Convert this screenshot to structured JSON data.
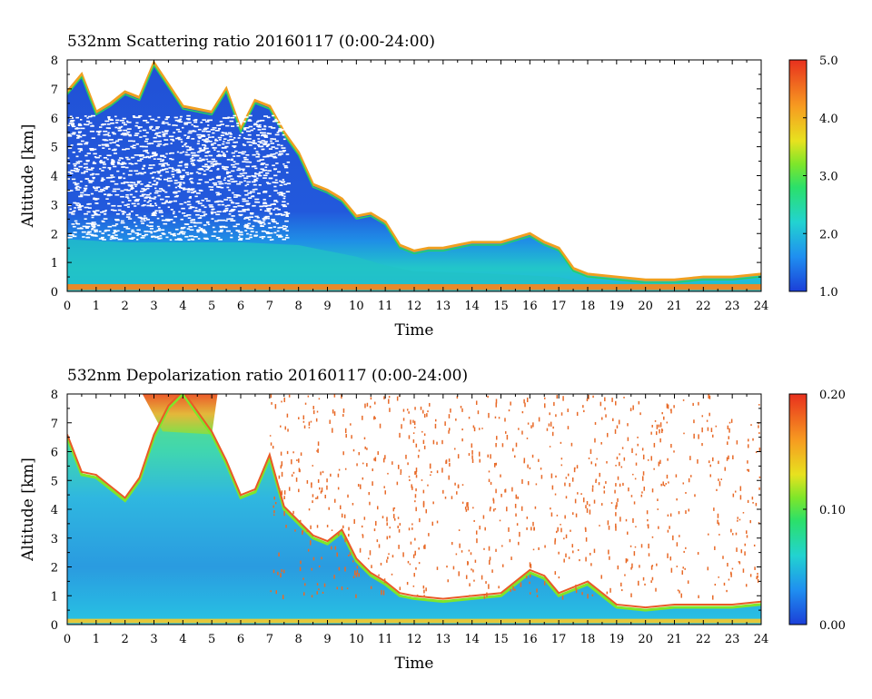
{
  "chart_data": [
    {
      "type": "heatmap",
      "title": "532nm Scattering ratio   20160117 (0:00-24:00)",
      "xlabel": "Time",
      "ylabel": "Altitude [km]",
      "xlim": [
        0,
        24
      ],
      "ylim": [
        0,
        8
      ],
      "x_ticks": [
        "0",
        "1",
        "2",
        "3",
        "4",
        "5",
        "6",
        "7",
        "8",
        "9",
        "10",
        "11",
        "12",
        "13",
        "14",
        "15",
        "16",
        "17",
        "18",
        "19",
        "20",
        "21",
        "22",
        "23",
        "24"
      ],
      "y_ticks": [
        "0",
        "1",
        "2",
        "3",
        "4",
        "5",
        "6",
        "7",
        "8"
      ],
      "colorbar": {
        "range": [
          1.0,
          5.0
        ],
        "ticks": [
          "1.0",
          "2.0",
          "3.0",
          "4.0",
          "5.0"
        ]
      },
      "cloud_top_km": [
        [
          0,
          6.9
        ],
        [
          0.5,
          7.5
        ],
        [
          1,
          6.2
        ],
        [
          1.5,
          6.5
        ],
        [
          2,
          6.9
        ],
        [
          2.5,
          6.7
        ],
        [
          3,
          7.9
        ],
        [
          4,
          6.4
        ],
        [
          5,
          6.2
        ],
        [
          5.5,
          7.0
        ],
        [
          6,
          5.6
        ],
        [
          6.5,
          6.6
        ],
        [
          7,
          6.4
        ],
        [
          7.5,
          5.5
        ],
        [
          8,
          4.8
        ],
        [
          8.5,
          3.7
        ],
        [
          9,
          3.5
        ],
        [
          9.5,
          3.2
        ],
        [
          10,
          2.6
        ],
        [
          10.5,
          2.7
        ],
        [
          11,
          2.4
        ],
        [
          11.5,
          1.6
        ],
        [
          12,
          1.4
        ],
        [
          12.5,
          1.5
        ],
        [
          13,
          1.5
        ],
        [
          14,
          1.7
        ],
        [
          15,
          1.7
        ],
        [
          16,
          2.0
        ],
        [
          16.5,
          1.7
        ],
        [
          17,
          1.5
        ],
        [
          17.5,
          0.8
        ],
        [
          18,
          0.6
        ],
        [
          19,
          0.5
        ],
        [
          20,
          0.4
        ],
        [
          21,
          0.4
        ],
        [
          22,
          0.5
        ],
        [
          23,
          0.5
        ],
        [
          24,
          0.6
        ]
      ],
      "boundary_layer_top_km": [
        [
          0,
          1.8
        ],
        [
          2,
          1.7
        ],
        [
          4,
          1.7
        ],
        [
          6,
          1.7
        ],
        [
          8,
          1.6
        ],
        [
          9,
          1.4
        ],
        [
          10,
          1.2
        ],
        [
          11,
          0.9
        ],
        [
          12,
          0.7
        ],
        [
          15,
          0.6
        ],
        [
          17,
          0.5
        ],
        [
          18,
          0.3
        ],
        [
          24,
          0.3
        ]
      ],
      "units": {
        "x": "hour",
        "y": "km"
      }
    },
    {
      "type": "heatmap",
      "title": "532nm Depolarization ratio   20160117 (0:00-24:00)",
      "xlabel": "Time",
      "ylabel": "Altitude [km]",
      "xlim": [
        0,
        24
      ],
      "ylim": [
        0,
        8
      ],
      "x_ticks": [
        "0",
        "1",
        "2",
        "3",
        "4",
        "5",
        "6",
        "7",
        "8",
        "9",
        "10",
        "11",
        "12",
        "13",
        "14",
        "15",
        "16",
        "17",
        "18",
        "19",
        "20",
        "21",
        "22",
        "23",
        "24"
      ],
      "y_ticks": [
        "0",
        "1",
        "2",
        "3",
        "4",
        "5",
        "6",
        "7",
        "8"
      ],
      "colorbar": {
        "range": [
          0.0,
          0.2
        ],
        "ticks": [
          "0.00",
          "0.10",
          "0.20"
        ]
      },
      "cloud_top_km": [
        [
          0,
          6.5
        ],
        [
          0.5,
          5.2
        ],
        [
          1,
          5.1
        ],
        [
          1.5,
          4.7
        ],
        [
          2,
          4.3
        ],
        [
          2.5,
          5.0
        ],
        [
          3,
          6.5
        ],
        [
          3.5,
          7.5
        ],
        [
          4,
          8.0
        ],
        [
          5,
          6.6
        ],
        [
          5.5,
          5.6
        ],
        [
          6,
          4.4
        ],
        [
          6.5,
          4.6
        ],
        [
          7,
          5.8
        ],
        [
          7.5,
          4.0
        ],
        [
          8,
          3.5
        ],
        [
          8.5,
          3.0
        ],
        [
          9,
          2.8
        ],
        [
          9.5,
          3.2
        ],
        [
          10,
          2.2
        ],
        [
          10.5,
          1.7
        ],
        [
          11,
          1.4
        ],
        [
          11.5,
          1.0
        ],
        [
          12,
          0.9
        ],
        [
          13,
          0.8
        ],
        [
          14,
          0.9
        ],
        [
          15,
          1.0
        ],
        [
          16,
          1.8
        ],
        [
          16.5,
          1.6
        ],
        [
          17,
          1.0
        ],
        [
          18,
          1.4
        ],
        [
          19,
          0.6
        ],
        [
          20,
          0.5
        ],
        [
          21,
          0.6
        ],
        [
          22,
          0.6
        ],
        [
          23,
          0.6
        ],
        [
          24,
          0.7
        ]
      ],
      "units": {
        "x": "hour",
        "y": "km"
      }
    }
  ]
}
